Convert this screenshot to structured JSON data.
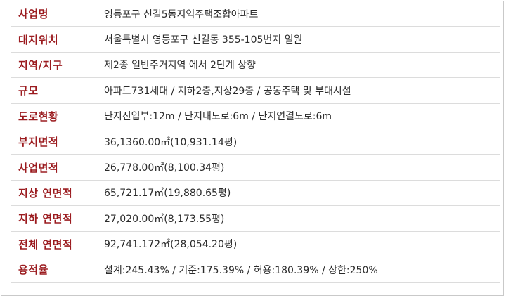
{
  "colors": {
    "label": "#9b1b1f",
    "value": "#2b2b2b",
    "divider": "#dcdcdc",
    "border": "#c9c9c9"
  },
  "rows": [
    {
      "label": "사업명",
      "value": "영등포구 신길5동지역주택조합아파트"
    },
    {
      "label": "대지위치",
      "value": "서울특별시 영등포구 신길동 355-105번지 일원"
    },
    {
      "label": "지역/지구",
      "value": "제2종 일반주거지역 에서 2단계 상향"
    },
    {
      "label": "규모",
      "value": "아파트731세대 / 지하2층,지상29층 / 공동주택 및 부대시설"
    },
    {
      "label": "도로현황",
      "value": "단지진입부:12m / 단지내도로:6m / 단지연결도로:6m"
    },
    {
      "label": "부지면적",
      "value": "36,1360.00㎡(10,931.14평)"
    },
    {
      "label": "사업면적",
      "value": "26,778.00㎡(8,100.34평)"
    },
    {
      "label": "지상 연면적",
      "value": "65,721.17㎡(19,880.65평)"
    },
    {
      "label": "지하 연면적",
      "value": "27,020.00㎡(8,173.55평)"
    },
    {
      "label": "전체 연면적",
      "value": "92,741.172㎡(28,054.20평)"
    },
    {
      "label": "용적율",
      "value": "설계:245.43% / 기준:175.39% / 허용:180.39% / 상한:250%"
    }
  ]
}
